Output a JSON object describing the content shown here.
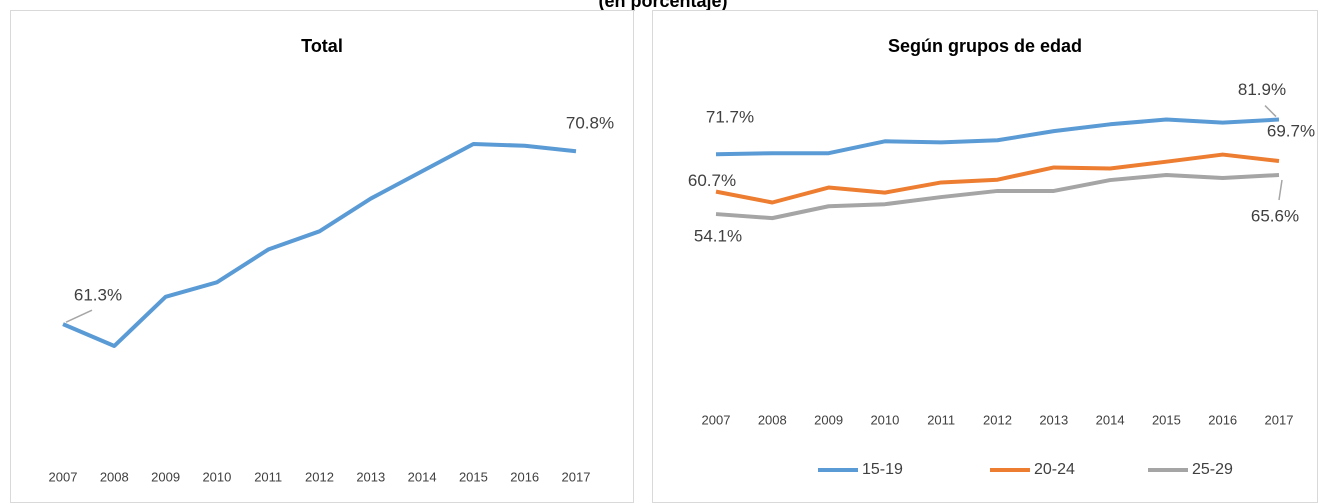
{
  "page_title": "(en porcentaje)",
  "chart_data": [
    {
      "type": "line",
      "title": "Total",
      "categories": [
        "2007",
        "2008",
        "2009",
        "2010",
        "2011",
        "2012",
        "2013",
        "2014",
        "2015",
        "2016",
        "2017"
      ],
      "values": [
        61.3,
        60.1,
        62.8,
        63.6,
        65.4,
        66.4,
        68.2,
        69.7,
        71.2,
        71.1,
        70.8
      ],
      "value_labels": [
        "61.3%",
        null,
        null,
        null,
        null,
        null,
        null,
        null,
        null,
        null,
        "70.8%"
      ],
      "color": "#5b9bd5",
      "ylim": [
        54,
        74
      ]
    },
    {
      "type": "line",
      "title": "Según grupos de edad",
      "categories": [
        "2007",
        "2008",
        "2009",
        "2010",
        "2011",
        "2012",
        "2013",
        "2014",
        "2015",
        "2016",
        "2017"
      ],
      "series": [
        {
          "name": "15-19",
          "color": "#5b9bd5",
          "values": [
            71.7,
            72.0,
            72.0,
            75.5,
            75.2,
            75.8,
            78.5,
            80.5,
            81.9,
            81.0,
            81.9
          ],
          "value_labels": [
            "71.7%",
            null,
            null,
            null,
            null,
            null,
            null,
            null,
            null,
            null,
            "81.9%"
          ]
        },
        {
          "name": "20-24",
          "color": "#ed7d31",
          "values": [
            60.7,
            57.5,
            61.9,
            60.4,
            63.4,
            64.2,
            67.8,
            67.5,
            69.5,
            71.6,
            69.7
          ],
          "value_labels": [
            "60.7%",
            null,
            null,
            null,
            null,
            null,
            null,
            null,
            null,
            null,
            "69.7%"
          ]
        },
        {
          "name": "25-29",
          "color": "#a5a5a5",
          "values": [
            54.1,
            52.9,
            56.4,
            57.0,
            59.1,
            60.9,
            60.9,
            64.1,
            65.6,
            64.7,
            65.6
          ],
          "value_labels": [
            "54.1%",
            null,
            null,
            null,
            null,
            null,
            null,
            null,
            null,
            null,
            "65.6%"
          ]
        }
      ],
      "ylim": [
        45,
        85
      ],
      "legend": "bottom"
    }
  ]
}
